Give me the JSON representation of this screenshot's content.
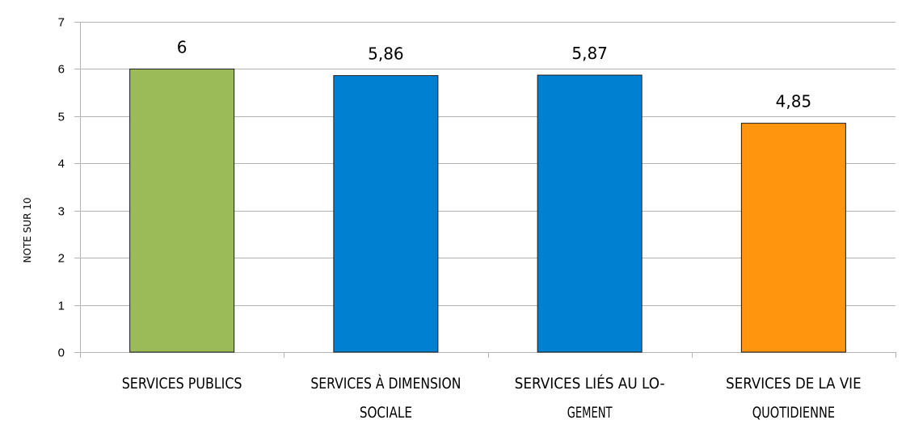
{
  "chart_data": {
    "type": "bar",
    "title": "",
    "xlabel": "",
    "ylabel": "NOTE SUR 10",
    "ylim": [
      0,
      7
    ],
    "yticks": [
      0,
      1,
      2,
      3,
      4,
      5,
      6,
      7
    ],
    "grid": true,
    "categories": [
      [
        "SERVICES PUBLICS"
      ],
      [
        "SERVICES À DIMENSION",
        "SOCIALE"
      ],
      [
        "SERVICES LIÉS AU LO-",
        "GEMENT"
      ],
      [
        "SERVICES DE LA VIE",
        "QUOTIDIENNE"
      ]
    ],
    "values": [
      6,
      5.86,
      5.87,
      4.85
    ],
    "value_labels": [
      "6",
      "5,86",
      "5,87",
      "4,85"
    ],
    "colors": [
      "#9bbb59",
      "#0080d0",
      "#0080d0",
      "#ff950e"
    ]
  }
}
